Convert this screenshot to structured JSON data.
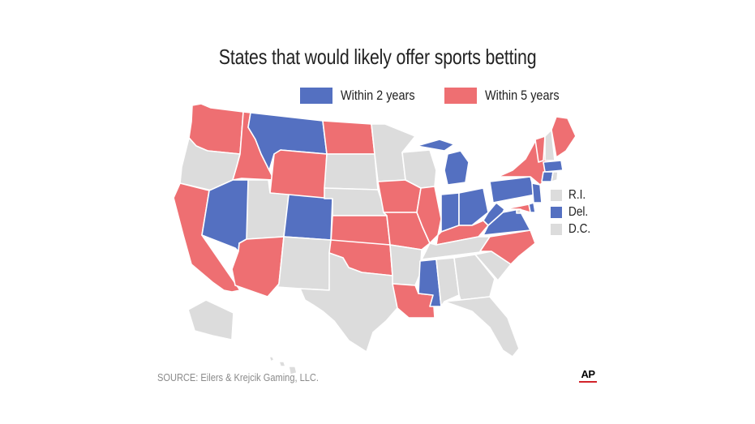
{
  "title": "States that would likely offer sports betting",
  "legend": [
    {
      "label": "Within 2 years",
      "color": "#5470c1"
    },
    {
      "label": "Within 5 years",
      "color": "#ee6f72"
    }
  ],
  "no_change_color": "#dcdcdc",
  "small_states": [
    {
      "label": "R.I.",
      "category": "none"
    },
    {
      "label": "Del.",
      "category": "within_2"
    },
    {
      "label": "D.C.",
      "category": "none"
    }
  ],
  "source": "SOURCE: Eilers & Krejcik Gaming, LLC.",
  "logo": "AP",
  "state_categories": {
    "within_2_years": [
      "MT",
      "NV",
      "CO",
      "MS",
      "MI",
      "IN",
      "OH",
      "WV",
      "PA",
      "VA",
      "NJ",
      "CT",
      "MA",
      "DE"
    ],
    "within_5_years": [
      "WA",
      "ID",
      "WY",
      "ND",
      "CA",
      "AZ",
      "IA",
      "IL",
      "MO",
      "KS",
      "OK",
      "LA",
      "KY",
      "NC",
      "NY",
      "VT",
      "ME",
      "MD"
    ],
    "none": [
      "OR",
      "UT",
      "NM",
      "TX",
      "SD",
      "NE",
      "MN",
      "WI",
      "AR",
      "TN",
      "AL",
      "GA",
      "FL",
      "SC",
      "NH",
      "RI",
      "AK",
      "HI",
      "DC"
    ]
  }
}
